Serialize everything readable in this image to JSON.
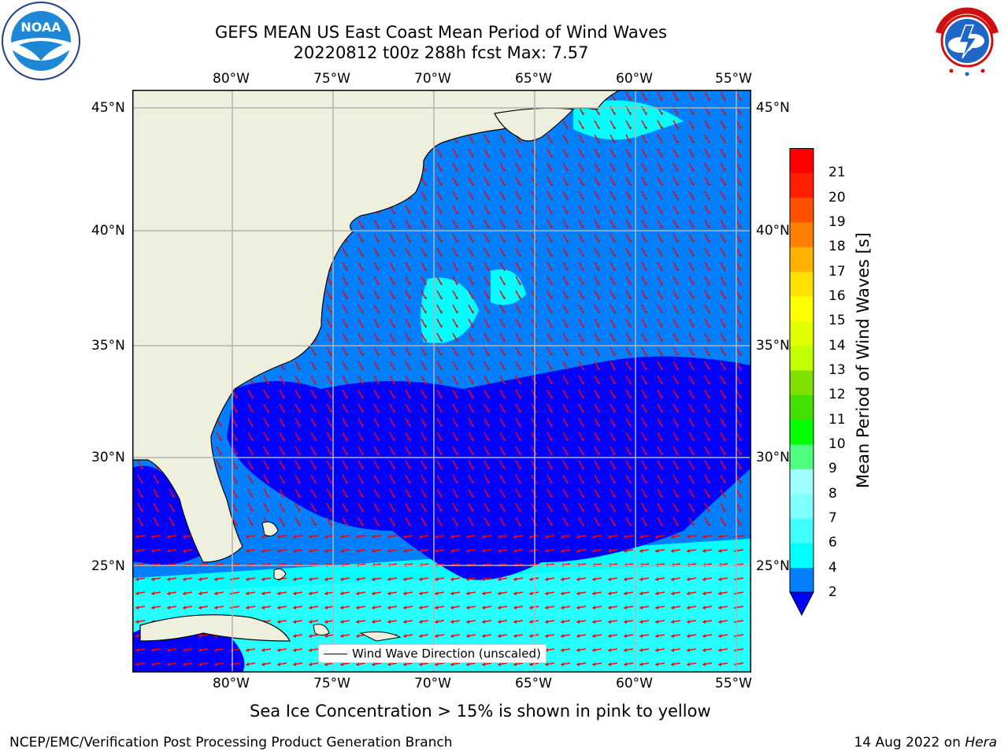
{
  "header": {
    "title_line1": "GEFS MEAN US East Coast Mean Period of Wind Waves",
    "title_line2": "20220812 t00z 288h fcst   Max: 7.57"
  },
  "logos": {
    "left_text": "NOAA",
    "right_text": "NATIONAL WEATHER SERVICE"
  },
  "map": {
    "lon_labels": [
      "80°W",
      "75°W",
      "70°W",
      "65°W",
      "60°W",
      "55°W"
    ],
    "lat_labels": [
      "45°N",
      "40°N",
      "35°N",
      "30°N",
      "25°N"
    ],
    "legend_label": "Wind Wave Direction (unscaled)",
    "colors": {
      "land": "#efefdd",
      "coast": "#000000",
      "arrows": "#ff0000",
      "grid": "#b4b4b4"
    }
  },
  "colorbar": {
    "title": "Mean Period of Wind Waves [s]",
    "levels": [
      "2",
      "4",
      "6",
      "7",
      "8",
      "9",
      "10",
      "11",
      "12",
      "13",
      "14",
      "15",
      "16",
      "17",
      "18",
      "19",
      "20",
      "21"
    ],
    "colors": [
      "#0080ff",
      "#00ffff",
      "#40ffff",
      "#80ffff",
      "#a0ffff",
      "#50ff80",
      "#00ff00",
      "#40e000",
      "#80e000",
      "#c0ff00",
      "#e0ff00",
      "#ffff00",
      "#ffe000",
      "#ffb000",
      "#ff8000",
      "#ff5000",
      "#ff2000",
      "#ff0000"
    ],
    "under_color": "#0000ff"
  },
  "notes": {
    "sea_ice": "Sea Ice Concentration > 15% is shown in pink to yellow"
  },
  "footer": {
    "left": "NCEP/EMC/Verification Post Processing Product Generation Branch",
    "right_prefix": "14 Aug 2022 on ",
    "right_host": "Hera"
  }
}
